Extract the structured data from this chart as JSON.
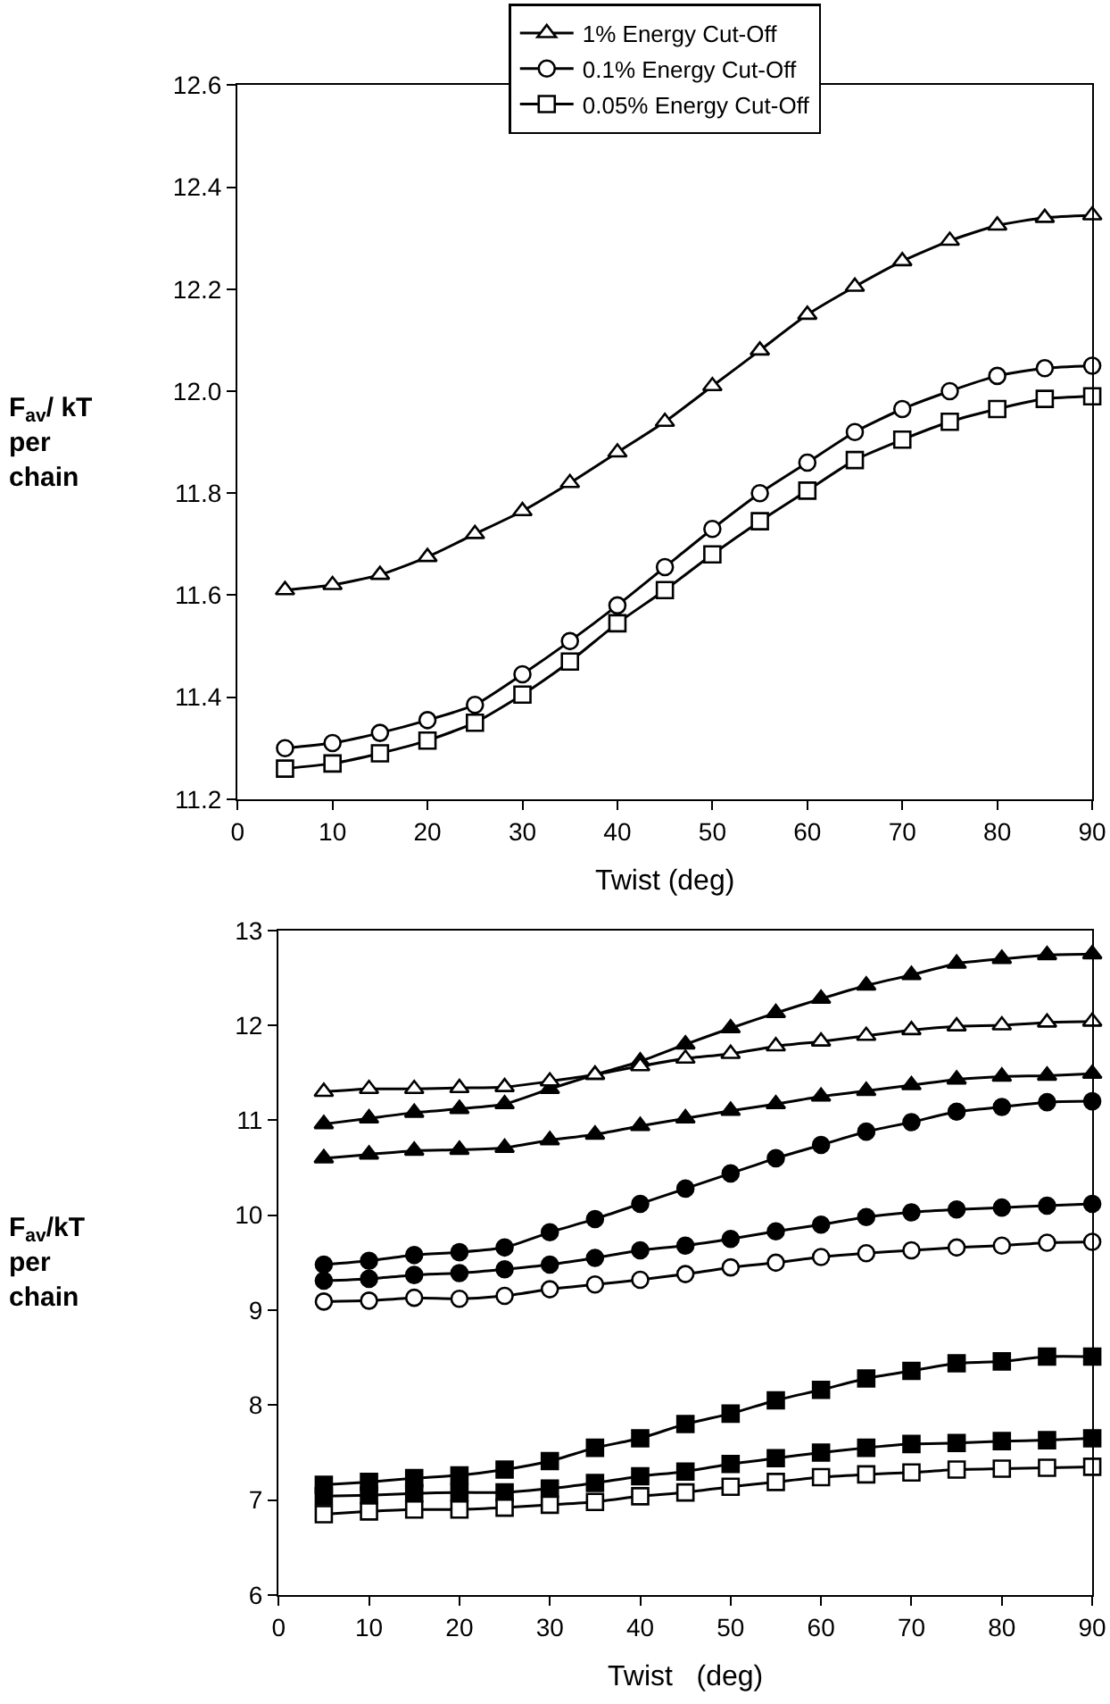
{
  "chart_data": [
    {
      "type": "line",
      "xlabel": "Twist (deg)",
      "ylabel": "F$_{av}$/ kT\nper\nchain",
      "x": [
        5,
        10,
        15,
        20,
        25,
        30,
        35,
        40,
        45,
        50,
        55,
        60,
        65,
        70,
        75,
        80,
        85,
        90
      ],
      "xlim": [
        0,
        90
      ],
      "xticks": [
        0,
        10,
        20,
        30,
        40,
        50,
        60,
        70,
        80,
        90
      ],
      "ylim": [
        11.2,
        12.6
      ],
      "yticks": [
        {
          "value": 11.2,
          "label": "11.2"
        },
        {
          "value": 11.4,
          "label": "11.4"
        },
        {
          "value": 11.6,
          "label": "11.6"
        },
        {
          "value": 11.8,
          "label": "11.8"
        },
        {
          "value": 12,
          "label": "12.0"
        },
        {
          "value": 12.2,
          "label": "12.2"
        },
        {
          "value": 12.4,
          "label": "12.4"
        },
        {
          "value": 12.6,
          "label": "12.6"
        }
      ],
      "grid": false,
      "legend": "top",
      "line_style": "solid",
      "series": [
        {
          "name": "1% Energy Cut-Off",
          "color": "#000000",
          "colors": [
            "#ffffff",
            "#ffffff",
            "#ffffff",
            "#ffffff",
            "#ffffff",
            "#ffffff",
            "#ffffff",
            "#ffffff",
            "#ffffff",
            "#ffffff",
            "#ffffff",
            "#ffffff",
            "#ffffff",
            "#ffffff",
            "#ffffff",
            "#ffffff",
            "#ffffff",
            "#ffffff"
          ],
          "marker": "triangle",
          "values": [
            11.61,
            11.62,
            11.64,
            11.675,
            11.72,
            11.765,
            11.82,
            11.88,
            11.94,
            12.01,
            12.08,
            12.15,
            12.205,
            12.255,
            12.295,
            12.325,
            12.34,
            12.345
          ]
        },
        {
          "name": "0.1% Energy Cut-Off",
          "color": "#000000",
          "colors": [
            "#ffffff",
            "#ffffff",
            "#ffffff",
            "#ffffff",
            "#ffffff",
            "#ffffff",
            "#ffffff",
            "#ffffff",
            "#ffffff",
            "#ffffff",
            "#ffffff",
            "#ffffff",
            "#ffffff",
            "#ffffff",
            "#ffffff",
            "#ffffff",
            "#ffffff",
            "#ffffff"
          ],
          "marker": "circle",
          "values": [
            11.3,
            11.31,
            11.33,
            11.355,
            11.385,
            11.445,
            11.51,
            11.58,
            11.655,
            11.73,
            11.8,
            11.86,
            11.92,
            11.965,
            12.0,
            12.03,
            12.045,
            12.05
          ]
        },
        {
          "name": "0.05% Energy Cut-Off",
          "color": "#000000",
          "colors": [
            "#ffffff",
            "#ffffff",
            "#ffffff",
            "#ffffff",
            "#ffffff",
            "#ffffff",
            "#ffffff",
            "#ffffff",
            "#ffffff",
            "#ffffff",
            "#ffffff",
            "#ffffff",
            "#ffffff",
            "#ffffff",
            "#ffffff",
            "#ffffff",
            "#ffffff",
            "#ffffff"
          ],
          "marker": "square",
          "values": [
            11.26,
            11.27,
            11.29,
            11.315,
            11.35,
            11.405,
            11.47,
            11.545,
            11.61,
            11.68,
            11.745,
            11.805,
            11.865,
            11.905,
            11.94,
            11.965,
            11.985,
            11.99
          ]
        }
      ]
    },
    {
      "type": "line",
      "xlabel": "Twist   (deg)",
      "ylabel": "F$_{av}$/kT\nper\nchain",
      "x": [
        5,
        10,
        15,
        20,
        25,
        30,
        35,
        40,
        45,
        50,
        55,
        60,
        65,
        70,
        75,
        80,
        85,
        90
      ],
      "xlim": [
        0,
        90
      ],
      "xticks": [
        0,
        10,
        20,
        30,
        40,
        50,
        60,
        70,
        80,
        90
      ],
      "ylim": [
        6,
        13
      ],
      "yticks": [
        6,
        7,
        8,
        9,
        10,
        11,
        12,
        13
      ],
      "grid": false,
      "legend": false,
      "line_style": "solid",
      "series": [
        {
          "color": "#000000",
          "marker": "triangle",
          "values": [
            10.96,
            11.02,
            11.08,
            11.12,
            11.17,
            11.33,
            11.48,
            11.62,
            11.8,
            11.97,
            12.13,
            12.28,
            12.42,
            12.53,
            12.65,
            12.7,
            12.74,
            12.75
          ]
        },
        {
          "color": "#000000",
          "colors": [
            "#ffffff",
            "#ffffff",
            "#ffffff",
            "#ffffff",
            "#ffffff",
            "#ffffff",
            "#ffffff",
            "#ffffff",
            "#ffffff",
            "#ffffff",
            "#ffffff",
            "#ffffff",
            "#ffffff",
            "#ffffff",
            "#ffffff",
            "#ffffff",
            "#ffffff",
            "#ffffff"
          ],
          "marker": "triangle",
          "values": [
            11.3,
            11.33,
            11.33,
            11.34,
            11.35,
            11.41,
            11.48,
            11.57,
            11.65,
            11.7,
            11.78,
            11.83,
            11.89,
            11.95,
            11.99,
            12.0,
            12.03,
            12.04
          ]
        },
        {
          "color": "#000000",
          "marker": "triangle",
          "values": [
            10.6,
            10.64,
            10.68,
            10.69,
            10.71,
            10.79,
            10.85,
            10.94,
            11.02,
            11.1,
            11.17,
            11.25,
            11.31,
            11.37,
            11.43,
            11.46,
            11.47,
            11.49
          ]
        },
        {
          "color": "#000000",
          "marker": "circle",
          "values": [
            9.48,
            9.52,
            9.58,
            9.61,
            9.66,
            9.82,
            9.96,
            10.12,
            10.28,
            10.44,
            10.6,
            10.74,
            10.88,
            10.98,
            11.09,
            11.14,
            11.19,
            11.2
          ]
        },
        {
          "color": "#000000",
          "marker": "circle",
          "values": [
            9.31,
            9.33,
            9.37,
            9.39,
            9.43,
            9.48,
            9.55,
            9.63,
            9.68,
            9.75,
            9.83,
            9.9,
            9.98,
            10.03,
            10.06,
            10.08,
            10.1,
            10.12
          ]
        },
        {
          "color": "#000000",
          "colors": [
            "#ffffff",
            "#ffffff",
            "#ffffff",
            "#ffffff",
            "#ffffff",
            "#ffffff",
            "#ffffff",
            "#ffffff",
            "#ffffff",
            "#ffffff",
            "#ffffff",
            "#ffffff",
            "#ffffff",
            "#ffffff",
            "#ffffff",
            "#ffffff",
            "#ffffff",
            "#ffffff"
          ],
          "marker": "circle",
          "values": [
            9.09,
            9.1,
            9.13,
            9.12,
            9.15,
            9.22,
            9.27,
            9.32,
            9.38,
            9.45,
            9.5,
            9.56,
            9.6,
            9.63,
            9.66,
            9.68,
            9.71,
            9.72
          ]
        },
        {
          "color": "#000000",
          "marker": "square",
          "values": [
            7.16,
            7.19,
            7.23,
            7.26,
            7.32,
            7.41,
            7.55,
            7.65,
            7.8,
            7.91,
            8.05,
            8.16,
            8.28,
            8.36,
            8.44,
            8.46,
            8.51,
            8.51
          ]
        },
        {
          "color": "#000000",
          "marker": "square",
          "values": [
            7.04,
            7.05,
            7.07,
            7.08,
            7.08,
            7.12,
            7.18,
            7.25,
            7.3,
            7.38,
            7.44,
            7.5,
            7.55,
            7.59,
            7.6,
            7.62,
            7.63,
            7.65
          ]
        },
        {
          "color": "#000000",
          "colors": [
            "#ffffff",
            "#ffffff",
            "#ffffff",
            "#ffffff",
            "#ffffff",
            "#ffffff",
            "#ffffff",
            "#ffffff",
            "#ffffff",
            "#ffffff",
            "#ffffff",
            "#ffffff",
            "#ffffff",
            "#ffffff",
            "#ffffff",
            "#ffffff",
            "#ffffff",
            "#ffffff"
          ],
          "marker": "square",
          "values": [
            6.85,
            6.88,
            6.9,
            6.9,
            6.92,
            6.95,
            6.98,
            7.04,
            7.08,
            7.14,
            7.19,
            7.24,
            7.27,
            7.29,
            7.32,
            7.33,
            7.34,
            7.35
          ]
        }
      ]
    }
  ]
}
